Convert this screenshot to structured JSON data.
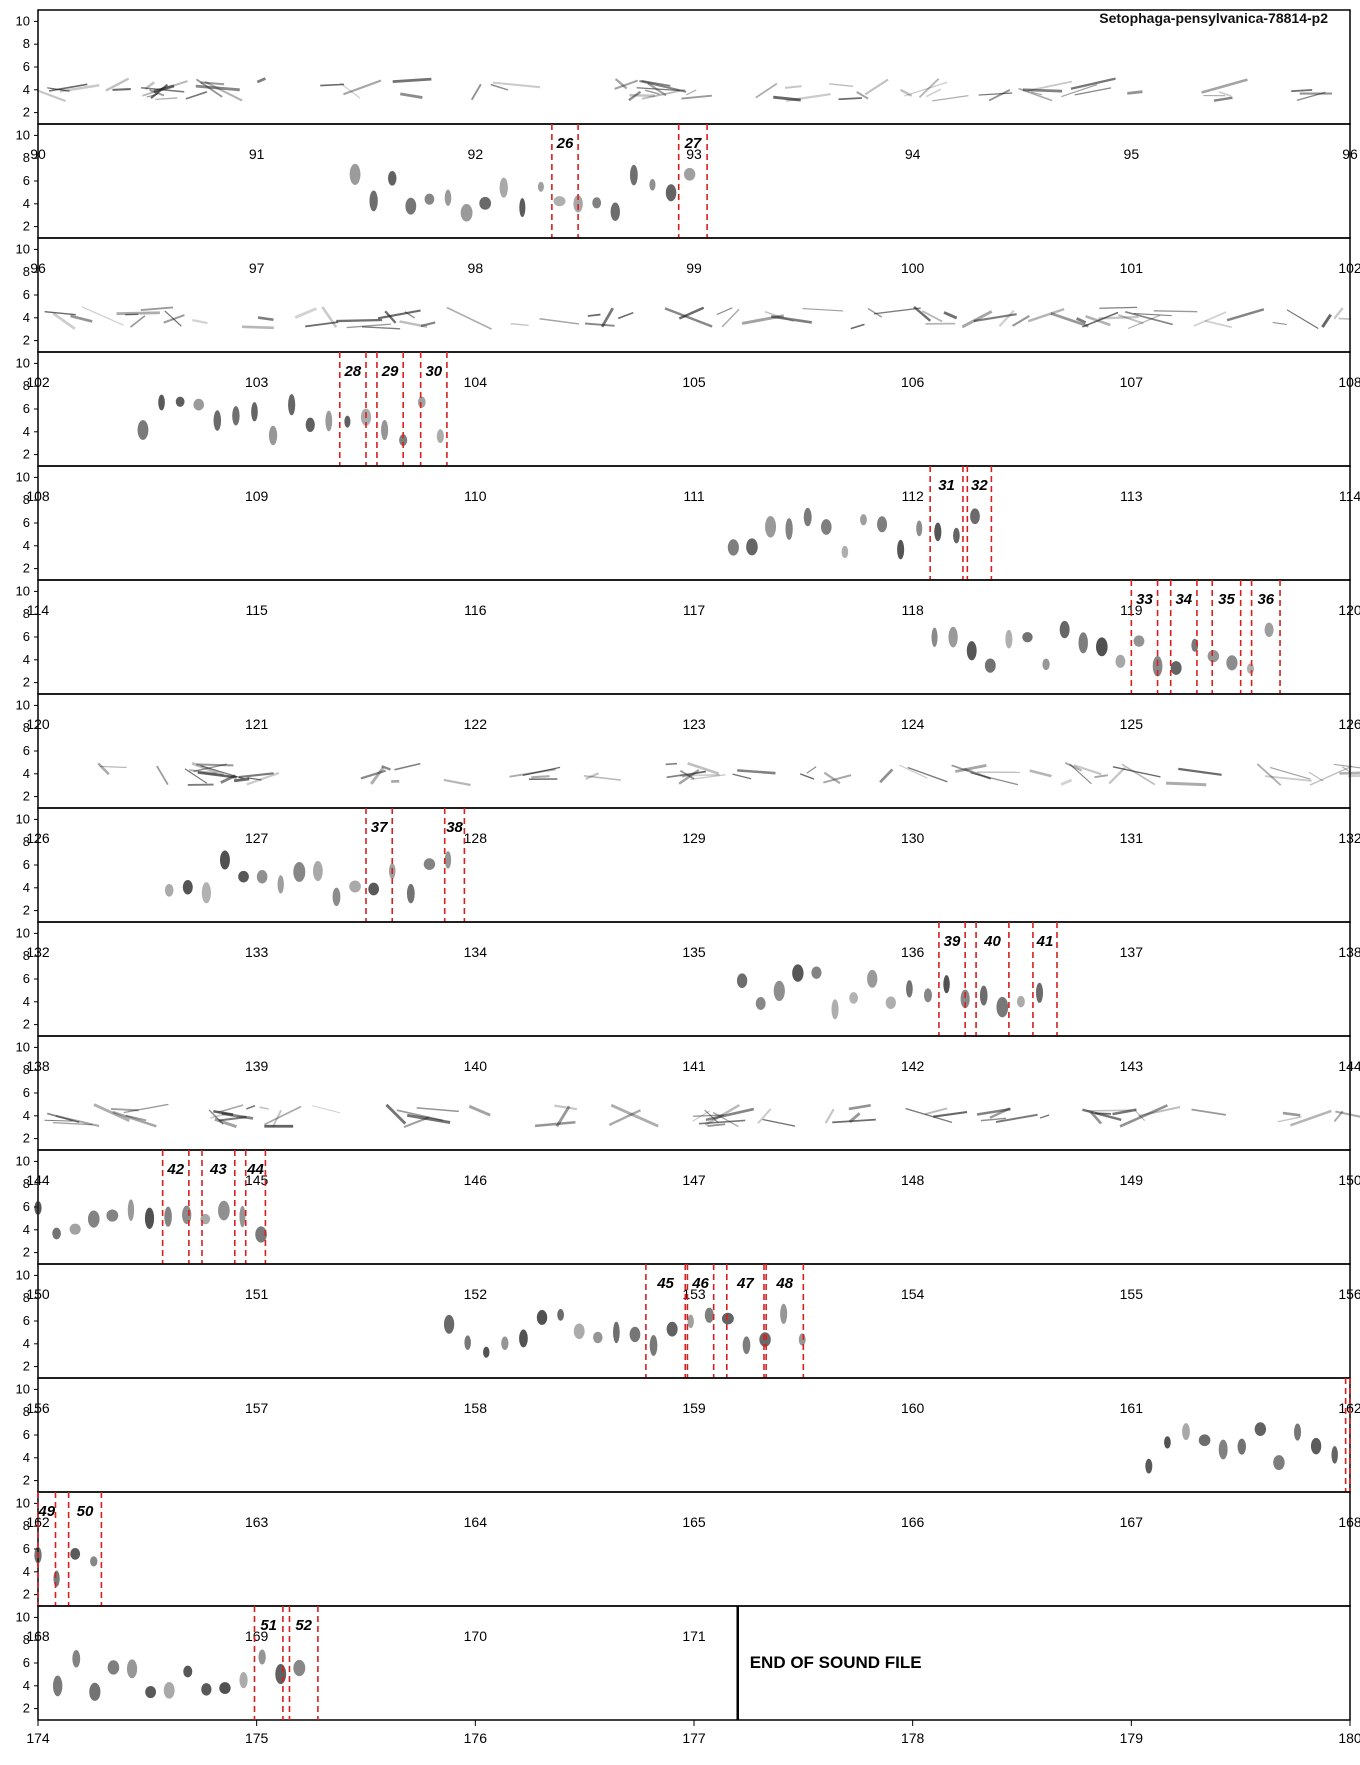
{
  "title": "Setophaga-pensylvanica-78814-p2",
  "end_label": "END OF SOUND FILE",
  "colors": {
    "selection": "#d62020",
    "spectrogram": "#222222",
    "frame": "#000000"
  },
  "chart_data": {
    "type": "spectrogram",
    "title": "Setophaga-pensylvanica-78814-p2",
    "seconds_per_row": 6,
    "y_ticks": [
      2,
      4,
      6,
      8,
      10
    ],
    "ylim": [
      1,
      11
    ],
    "bottom_axis_ticks": [
      174,
      175,
      176,
      177,
      178,
      179,
      180
    ],
    "end_of_file_time": 171.2,
    "rows": [
      {
        "tick_labels": [],
        "start": 84,
        "syllables": []
      },
      {
        "tick_labels": [
          90,
          91,
          92,
          93,
          94,
          95,
          96
        ],
        "start": 90,
        "syllables": [
          {
            "label": "26",
            "start": 92.35,
            "end": 92.47
          },
          {
            "label": "27",
            "start": 92.93,
            "end": 93.06
          }
        ]
      },
      {
        "tick_labels": [
          96,
          97,
          98,
          99,
          100,
          101,
          102
        ],
        "start": 96,
        "syllables": []
      },
      {
        "tick_labels": [
          102,
          103,
          104,
          105,
          106,
          107,
          108
        ],
        "start": 102,
        "syllables": [
          {
            "label": "28",
            "start": 103.38,
            "end": 103.5
          },
          {
            "label": "29",
            "start": 103.55,
            "end": 103.67
          },
          {
            "label": "30",
            "start": 103.75,
            "end": 103.87
          }
        ]
      },
      {
        "tick_labels": [
          108,
          109,
          110,
          111,
          112,
          113,
          114
        ],
        "start": 108,
        "syllables": [
          {
            "label": "31",
            "start": 112.08,
            "end": 112.23
          },
          {
            "label": "32",
            "start": 112.25,
            "end": 112.36
          }
        ]
      },
      {
        "tick_labels": [
          114,
          115,
          116,
          117,
          118,
          119,
          120
        ],
        "start": 114,
        "syllables": [
          {
            "label": "33",
            "start": 119.0,
            "end": 119.12
          },
          {
            "label": "34",
            "start": 119.18,
            "end": 119.3
          },
          {
            "label": "35",
            "start": 119.37,
            "end": 119.5
          },
          {
            "label": "36",
            "start": 119.55,
            "end": 119.68
          }
        ]
      },
      {
        "tick_labels": [
          120,
          121,
          122,
          123,
          124,
          125,
          126
        ],
        "start": 120,
        "syllables": []
      },
      {
        "tick_labels": [
          126,
          127,
          128,
          129,
          130,
          131,
          132
        ],
        "start": 126,
        "syllables": [
          {
            "label": "37",
            "start": 127.5,
            "end": 127.62
          },
          {
            "label": "38",
            "start": 127.86,
            "end": 127.95
          }
        ]
      },
      {
        "tick_labels": [
          132,
          133,
          134,
          135,
          136,
          137,
          138
        ],
        "start": 132,
        "syllables": [
          {
            "label": "39",
            "start": 136.12,
            "end": 136.24
          },
          {
            "label": "40",
            "start": 136.29,
            "end": 136.44
          },
          {
            "label": "41",
            "start": 136.55,
            "end": 136.66
          }
        ]
      },
      {
        "tick_labels": [
          138,
          139,
          140,
          141,
          142,
          143,
          144
        ],
        "start": 138,
        "syllables": []
      },
      {
        "tick_labels": [
          144,
          145,
          146,
          147,
          148,
          149,
          150
        ],
        "start": 144,
        "syllables": [
          {
            "label": "42",
            "start": 144.57,
            "end": 144.69
          },
          {
            "label": "43",
            "start": 144.75,
            "end": 144.9
          },
          {
            "label": "44",
            "start": 144.95,
            "end": 145.04
          }
        ]
      },
      {
        "tick_labels": [
          150,
          151,
          152,
          153,
          154,
          155,
          156
        ],
        "start": 150,
        "syllables": [
          {
            "label": "45",
            "start": 152.78,
            "end": 152.96
          },
          {
            "label": "46",
            "start": 152.97,
            "end": 153.09
          },
          {
            "label": "47",
            "start": 153.15,
            "end": 153.32
          },
          {
            "label": "48",
            "start": 153.33,
            "end": 153.5
          }
        ]
      },
      {
        "tick_labels": [
          156,
          157,
          158,
          159,
          160,
          161,
          162
        ],
        "start": 156,
        "syllables": [
          {
            "label": "",
            "start": 161.98,
            "end": 162.0
          }
        ]
      },
      {
        "tick_labels": [
          162,
          163,
          164,
          165,
          166,
          167,
          168
        ],
        "start": 162,
        "syllables": [
          {
            "label": "49",
            "start": 162.0,
            "end": 162.08
          },
          {
            "label": "50",
            "start": 162.14,
            "end": 162.29
          }
        ]
      },
      {
        "tick_labels": [
          168,
          169,
          170,
          171
        ],
        "start": 168,
        "syllables": [
          {
            "label": "51",
            "start": 168.99,
            "end": 169.12
          },
          {
            "label": "52",
            "start": 169.15,
            "end": 169.28
          }
        ]
      }
    ]
  }
}
